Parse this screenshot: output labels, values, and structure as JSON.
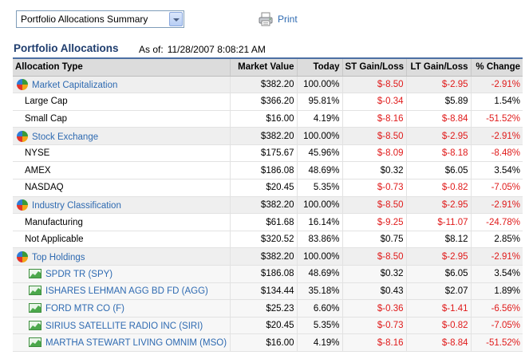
{
  "view_select": {
    "selected": "Portfolio Allocations Summary"
  },
  "print": {
    "label": "Print"
  },
  "page": {
    "title": "Portfolio Allocations",
    "as_of_label": "As of:",
    "as_of_timestamp": "11/28/2007 8:08:21 AM"
  },
  "table": {
    "headers": [
      "Allocation Type",
      "Market Value",
      "Today",
      "ST Gain/Loss",
      "LT Gain/Loss",
      "% Change"
    ],
    "rows": [
      {
        "type": "group",
        "label": "Market Capitalization",
        "market_value": "$382.20",
        "today": "100.00%",
        "st": "$-8.50",
        "lt": "$-2.95",
        "pct": "-2.91%"
      },
      {
        "type": "sub",
        "label": "Large Cap",
        "market_value": "$366.20",
        "today": "95.81%",
        "st": "$-0.34",
        "lt": "$5.89",
        "pct": "1.54%"
      },
      {
        "type": "sub",
        "label": "Small Cap",
        "market_value": "$16.00",
        "today": "4.19%",
        "st": "$-8.16",
        "lt": "$-8.84",
        "pct": "-51.52%"
      },
      {
        "type": "group",
        "label": "Stock Exchange",
        "market_value": "$382.20",
        "today": "100.00%",
        "st": "$-8.50",
        "lt": "$-2.95",
        "pct": "-2.91%"
      },
      {
        "type": "sub",
        "label": "NYSE",
        "market_value": "$175.67",
        "today": "45.96%",
        "st": "$-8.09",
        "lt": "$-8.18",
        "pct": "-8.48%"
      },
      {
        "type": "sub",
        "label": "AMEX",
        "market_value": "$186.08",
        "today": "48.69%",
        "st": "$0.32",
        "lt": "$6.05",
        "pct": "3.54%"
      },
      {
        "type": "sub",
        "label": "NASDAQ",
        "market_value": "$20.45",
        "today": "5.35%",
        "st": "$-0.73",
        "lt": "$-0.82",
        "pct": "-7.05%"
      },
      {
        "type": "group",
        "label": "Industry Classification",
        "market_value": "$382.20",
        "today": "100.00%",
        "st": "$-8.50",
        "lt": "$-2.95",
        "pct": "-2.91%"
      },
      {
        "type": "sub",
        "label": "Manufacturing",
        "market_value": "$61.68",
        "today": "16.14%",
        "st": "$-9.25",
        "lt": "$-11.07",
        "pct": "-24.78%"
      },
      {
        "type": "sub",
        "label": "Not Applicable",
        "market_value": "$320.52",
        "today": "83.86%",
        "st": "$0.75",
        "lt": "$8.12",
        "pct": "2.85%"
      },
      {
        "type": "group",
        "label": "Top Holdings",
        "market_value": "$382.20",
        "today": "100.00%",
        "st": "$-8.50",
        "lt": "$-2.95",
        "pct": "-2.91%"
      },
      {
        "type": "holding",
        "label": "SPDR TR (SPY)",
        "market_value": "$186.08",
        "today": "48.69%",
        "st": "$0.32",
        "lt": "$6.05",
        "pct": "3.54%"
      },
      {
        "type": "holding",
        "label": "ISHARES LEHMAN AGG BD FD (AGG)",
        "market_value": "$134.44",
        "today": "35.18%",
        "st": "$0.43",
        "lt": "$2.07",
        "pct": "1.89%"
      },
      {
        "type": "holding",
        "label": "FORD MTR CO (F)",
        "market_value": "$25.23",
        "today": "6.60%",
        "st": "$-0.36",
        "lt": "$-1.41",
        "pct": "-6.56%"
      },
      {
        "type": "holding",
        "label": "SIRIUS SATELLITE RADIO INC (SIRI)",
        "market_value": "$20.45",
        "today": "5.35%",
        "st": "$-0.73",
        "lt": "$-0.82",
        "pct": "-7.05%"
      },
      {
        "type": "holding",
        "label": "MARTHA STEWART LIVING OMNIM (MSO)",
        "market_value": "$16.00",
        "today": "4.19%",
        "st": "$-8.16",
        "lt": "$-8.84",
        "pct": "-51.52%"
      }
    ]
  },
  "colors": {
    "link": "#2e6ab1",
    "title": "#1f3d6e",
    "negative": "#e01a1a",
    "header_bg": "#dcdcdc",
    "header_border": "#4d6fa3"
  },
  "icons": {
    "group": "pie-chart-icon",
    "holding": "line-chart-icon",
    "print": "printer-icon",
    "select": "chevron-down-icon"
  }
}
